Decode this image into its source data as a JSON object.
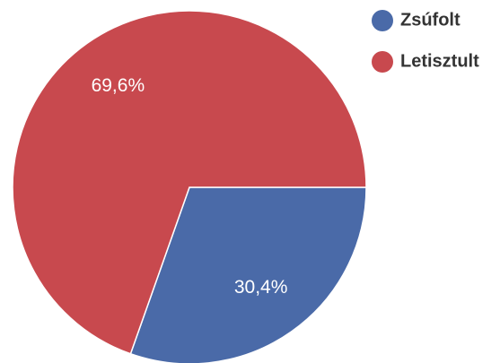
{
  "chart_data": {
    "type": "pie",
    "categories": [
      "Zsúfolt",
      "Letisztult"
    ],
    "values": [
      30.4,
      69.6
    ],
    "value_labels": [
      "30,4%",
      "69,6%"
    ],
    "colors": [
      "#4a6aa8",
      "#c8494e"
    ],
    "legend": "top-right"
  }
}
